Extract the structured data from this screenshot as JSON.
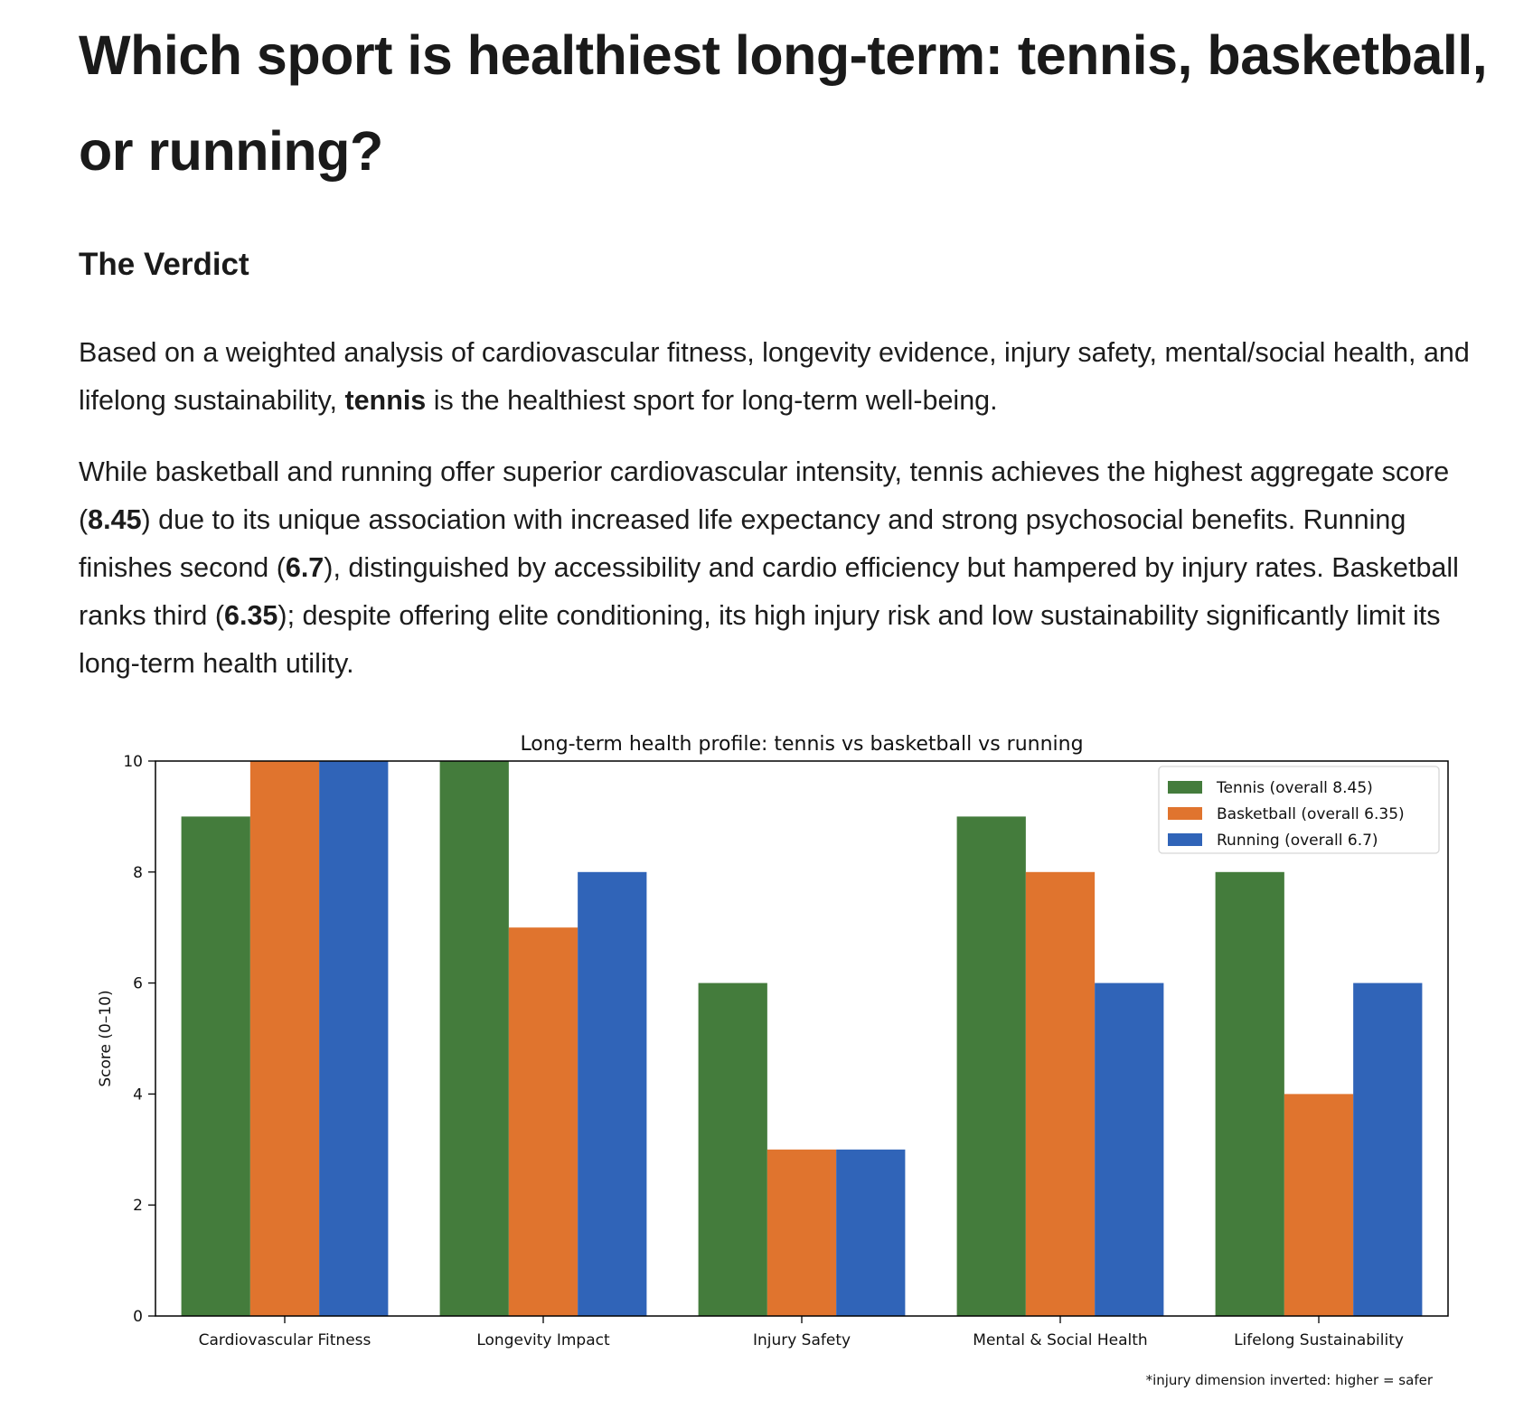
{
  "page": {
    "title": "Which sport is healthiest long-term: tennis, basketball, or running?",
    "section_heading": "The Verdict",
    "paragraph1": {
      "before": "Based on a weighted analysis of cardiovascular fitness, longevity evidence, injury safety, mental/social health, and lifelong sustainability, ",
      "bold": "tennis",
      "after": " is the healthiest sport for long-term well-being."
    },
    "paragraph2": {
      "t1": "While basketball and running offer superior cardiovascular intensity, tennis achieves the highest aggregate score (",
      "b1": "8.45",
      "t2": ") due to its unique association with increased life expectancy and strong psychosocial benefits. Running finishes second (",
      "b2": "6.7",
      "t3": "), distinguished by accessibility and cardio efficiency but hampered by injury rates. Basketball ranks third (",
      "b3": "6.35",
      "t4": "); despite offering elite conditioning, its high injury risk and low sustainability significantly limit its long-term health utility."
    }
  },
  "chart_data": {
    "type": "bar",
    "title": "Long-term health profile: tennis vs basketball vs running",
    "xlabel": "",
    "ylabel": "Score (0–10)",
    "ylim": [
      0,
      10
    ],
    "yticks": [
      0,
      2,
      4,
      6,
      8,
      10
    ],
    "categories": [
      "Cardiovascular Fitness",
      "Longevity Impact",
      "Injury Safety",
      "Mental & Social Health",
      "Lifelong Sustainability"
    ],
    "series": [
      {
        "name": "Tennis (overall 8.45)",
        "color": "#447c3c",
        "values": [
          9,
          10,
          6,
          9,
          8
        ]
      },
      {
        "name": "Basketball (overall 6.35)",
        "color": "#e0742e",
        "values": [
          10,
          7,
          3,
          8,
          4
        ]
      },
      {
        "name": "Running (overall 6.7)",
        "color": "#3064b8",
        "values": [
          10,
          8,
          3,
          6,
          6
        ]
      }
    ],
    "legend": "top-right",
    "grid": false,
    "footnote": "*injury dimension inverted: higher = safer"
  }
}
